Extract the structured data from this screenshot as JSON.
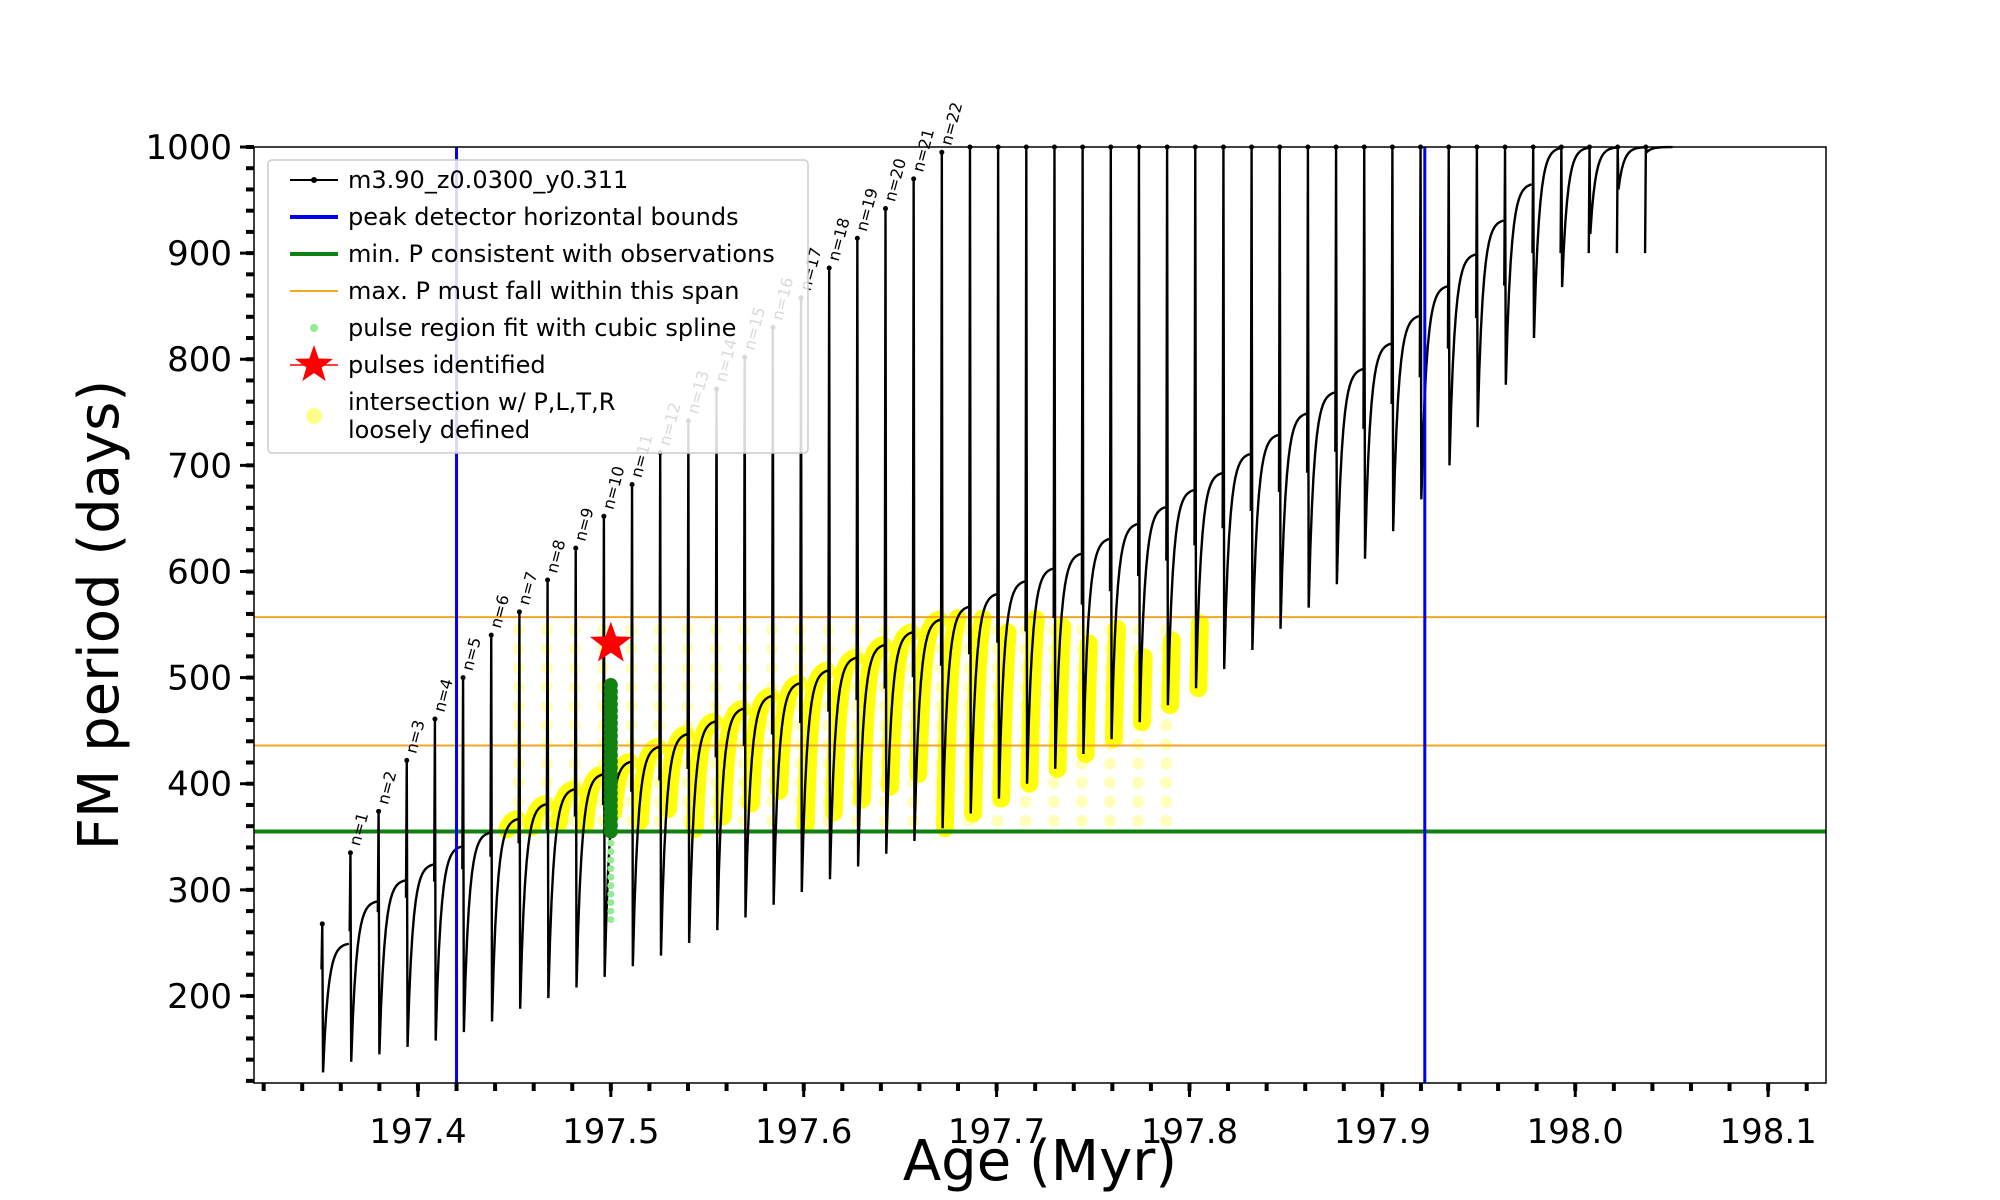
{
  "chart_data": {
    "type": "line",
    "xlabel": "Age (Myr)",
    "ylabel": "FM period (days)",
    "xlim": [
      197.315,
      198.13
    ],
    "ylim": [
      118,
      1000
    ],
    "xticks": [
      197.4,
      197.5,
      197.6,
      197.7,
      197.8,
      197.9,
      198.0,
      198.1
    ],
    "xtick_labels": [
      "197.4",
      "197.5",
      "197.6",
      "197.7",
      "197.8",
      "197.9",
      "198.0",
      "198.1"
    ],
    "yticks": [
      200,
      300,
      400,
      500,
      600,
      700,
      800,
      900,
      1000
    ],
    "ytick_labels": [
      "200",
      "300",
      "400",
      "500",
      "600",
      "700",
      "800",
      "900",
      "1000"
    ],
    "legend_position": "upper left",
    "legend": [
      {
        "label": "m3.90_z0.0300_y0.311",
        "style": "black-line-dot"
      },
      {
        "label": "peak detector horizontal bounds",
        "style": "blue-line"
      },
      {
        "label": "min. P consistent with observations",
        "style": "green-line"
      },
      {
        "label": "max. P must fall within this span",
        "style": "orange-line"
      },
      {
        "label": "pulse region fit with cubic spline",
        "style": "lightgreen-dot"
      },
      {
        "label": "pulses identified",
        "style": "red-star"
      },
      {
        "label": "intersection w/ P,L,T,R",
        "label2": "loosely defined",
        "style": "yellow-dot"
      }
    ],
    "vertical_lines": [
      {
        "x": 197.42,
        "color": "#0000ee",
        "role": "peak detector horizontal bounds"
      },
      {
        "x": 197.922,
        "color": "#0000ee",
        "role": "peak detector horizontal bounds"
      }
    ],
    "horizontal_lines": [
      {
        "y": 355,
        "color": "#108010",
        "role": "min. P consistent with observations"
      },
      {
        "y": 436,
        "color": "#f5a623",
        "role": "max. P span lower"
      },
      {
        "y": 557,
        "color": "#f5a623",
        "role": "max. P span upper"
      }
    ],
    "pulses_identified": [
      {
        "x": 197.5,
        "y": 532
      }
    ],
    "spline_fit": {
      "x": 197.5,
      "y_range": [
        272,
        500
      ]
    },
    "green_marker_column": {
      "x": 197.5,
      "y_range": [
        355,
        498
      ]
    },
    "series_model": {
      "name": "m3.90_z0.0300_y0.311",
      "first_pulse_x": 197.35,
      "pulse_spacing_myr": 0.0146,
      "pulse_count": 48,
      "peak_labels": [
        "n=1",
        "n=2",
        "n=3",
        "n=4",
        "n=5",
        "n=6",
        "n=7",
        "n=8",
        "n=9",
        "n=10",
        "n=11",
        "n=12",
        "n=13",
        "n=14",
        "n=15",
        "n=16",
        "n=17",
        "n=18",
        "n=19",
        "n=20",
        "n=21",
        "n=22"
      ],
      "peak_period_days": [
        268,
        335,
        374,
        422,
        461,
        500,
        540,
        562,
        592,
        622,
        652,
        682,
        712,
        742,
        772,
        802,
        830,
        858,
        886,
        914,
        942,
        970,
        995,
        1000,
        1000,
        1000,
        1000,
        1000,
        1000,
        1000,
        1000,
        1000,
        1000,
        1000,
        1000,
        1000,
        1000,
        1000,
        1000,
        1000,
        1000,
        1000,
        1000,
        1000,
        1000,
        1000,
        1000,
        1000
      ],
      "trough_period_days": [
        128,
        138,
        145,
        152,
        158,
        166,
        176,
        188,
        198,
        208,
        218,
        228,
        238,
        250,
        262,
        274,
        286,
        298,
        310,
        322,
        334,
        346,
        358,
        372,
        386,
        400,
        414,
        428,
        442,
        458,
        474,
        490,
        508,
        526,
        546,
        566,
        588,
        612,
        638,
        668,
        700,
        736,
        776,
        820,
        868,
        918,
        960,
        995
      ],
      "plateau_period_days": [
        250,
        290,
        310,
        325,
        342,
        355,
        368,
        382,
        396,
        410,
        422,
        436,
        448,
        460,
        472,
        484,
        496,
        508,
        520,
        532,
        544,
        556,
        568,
        580,
        592,
        604,
        618,
        632,
        646,
        662,
        678,
        694,
        712,
        730,
        750,
        770,
        792,
        816,
        842,
        870,
        900,
        932,
        966,
        1000,
        1000,
        1000,
        1000,
        1000
      ]
    }
  }
}
